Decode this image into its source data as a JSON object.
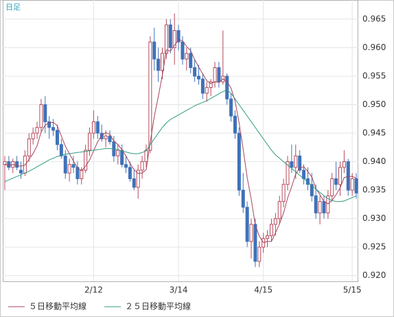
{
  "chart_data": {
    "type": "candlestick",
    "title": "日足",
    "categories": [
      null,
      null,
      null,
      null,
      null,
      null,
      null,
      null,
      null,
      null,
      null,
      null,
      null,
      null,
      null,
      null,
      null,
      null,
      null,
      null,
      null,
      null,
      "2/12",
      null,
      null,
      null,
      null,
      null,
      null,
      null,
      null,
      null,
      null,
      null,
      null,
      null,
      null,
      null,
      null,
      null,
      null,
      null,
      null,
      "3/14",
      null,
      null,
      null,
      null,
      null,
      null,
      null,
      null,
      null,
      null,
      null,
      null,
      null,
      null,
      null,
      null,
      null,
      null,
      null,
      null,
      "4/15",
      null,
      null,
      null,
      null,
      null,
      null,
      null,
      null,
      null,
      null,
      null,
      null,
      null,
      null,
      null,
      null,
      null,
      null,
      null,
      null,
      null,
      "5/15",
      null
    ],
    "open": [
      0.9395,
      0.94,
      0.939,
      0.94,
      0.9385,
      0.938,
      0.941,
      0.944,
      0.945,
      0.946,
      0.95,
      0.947,
      0.946,
      0.9455,
      0.943,
      0.941,
      0.938,
      0.9395,
      0.939,
      0.937,
      0.9385,
      0.942,
      0.945,
      0.947,
      0.945,
      0.944,
      0.9445,
      0.9435,
      0.941,
      0.942,
      0.9395,
      0.939,
      0.937,
      0.9355,
      0.9385,
      0.94,
      0.942,
      0.961,
      0.958,
      0.956,
      0.959,
      0.964,
      0.96,
      0.963,
      0.961,
      0.958,
      0.959,
      0.9565,
      0.955,
      0.9545,
      0.952,
      0.953,
      0.954,
      0.9565,
      0.954,
      0.955,
      0.951,
      0.948,
      0.945,
      0.935,
      0.932,
      0.926,
      0.929,
      0.9225,
      0.925,
      0.9265,
      0.927,
      0.929,
      0.93,
      0.933,
      0.936,
      0.94,
      0.939,
      0.941,
      0.9385,
      0.937,
      0.936,
      0.934,
      0.931,
      0.933,
      0.931,
      0.934,
      0.937,
      0.936,
      0.939,
      0.94,
      0.935,
      0.937
    ],
    "high": [
      0.941,
      0.941,
      0.9405,
      0.941,
      0.94,
      0.942,
      0.945,
      0.946,
      0.947,
      0.951,
      0.9515,
      0.948,
      0.9475,
      0.9465,
      0.944,
      0.942,
      0.9405,
      0.941,
      0.94,
      0.939,
      0.943,
      0.946,
      0.949,
      0.948,
      0.9465,
      0.9455,
      0.9455,
      0.9445,
      0.943,
      0.943,
      0.941,
      0.94,
      0.9385,
      0.9395,
      0.941,
      0.943,
      0.962,
      0.9635,
      0.96,
      0.96,
      0.965,
      0.965,
      0.966,
      0.964,
      0.962,
      0.96,
      0.96,
      0.958,
      0.957,
      0.9555,
      0.954,
      0.9545,
      0.9575,
      0.9575,
      0.963,
      0.9555,
      0.952,
      0.949,
      0.946,
      0.938,
      0.933,
      0.93,
      0.93,
      0.926,
      0.9275,
      0.928,
      0.93,
      0.931,
      0.934,
      0.937,
      0.941,
      0.943,
      0.943,
      0.942,
      0.9395,
      0.939,
      0.938,
      0.936,
      0.934,
      0.934,
      0.935,
      0.938,
      0.94,
      0.94,
      0.942,
      0.9405,
      0.938,
      0.938
    ],
    "low": [
      0.935,
      0.9385,
      0.938,
      0.9385,
      0.937,
      0.9375,
      0.94,
      0.943,
      0.944,
      0.945,
      0.945,
      0.944,
      0.9445,
      0.942,
      0.9405,
      0.937,
      0.9365,
      0.938,
      0.936,
      0.936,
      0.938,
      0.941,
      0.944,
      0.944,
      0.9435,
      0.9425,
      0.943,
      0.94,
      0.9395,
      0.939,
      0.938,
      0.9365,
      0.935,
      0.9335,
      0.937,
      0.939,
      0.9415,
      0.956,
      0.954,
      0.9545,
      0.958,
      0.959,
      0.957,
      0.9595,
      0.957,
      0.956,
      0.9555,
      0.954,
      0.9535,
      0.951,
      0.9505,
      0.9515,
      0.953,
      0.953,
      0.9535,
      0.95,
      0.947,
      0.944,
      0.934,
      0.931,
      0.925,
      0.923,
      0.9215,
      0.9215,
      0.924,
      0.925,
      0.926,
      0.927,
      0.929,
      0.932,
      0.935,
      0.938,
      0.937,
      0.938,
      0.936,
      0.935,
      0.933,
      0.93,
      0.929,
      0.93,
      0.93,
      0.933,
      0.935,
      0.934,
      0.938,
      0.934,
      0.934,
      0.9335
    ],
    "close": [
      0.94,
      0.939,
      0.94,
      0.939,
      0.938,
      0.941,
      0.944,
      0.945,
      0.946,
      0.95,
      0.947,
      0.946,
      0.9455,
      0.943,
      0.941,
      0.938,
      0.9395,
      0.939,
      0.937,
      0.9385,
      0.942,
      0.945,
      0.947,
      0.945,
      0.944,
      0.9445,
      0.9435,
      0.941,
      0.942,
      0.9395,
      0.939,
      0.937,
      0.9355,
      0.9385,
      0.94,
      0.942,
      0.961,
      0.958,
      0.956,
      0.959,
      0.964,
      0.96,
      0.963,
      0.961,
      0.958,
      0.959,
      0.9565,
      0.955,
      0.9545,
      0.952,
      0.953,
      0.954,
      0.9565,
      0.954,
      0.955,
      0.951,
      0.948,
      0.945,
      0.935,
      0.932,
      0.926,
      0.929,
      0.9225,
      0.925,
      0.9265,
      0.927,
      0.929,
      0.93,
      0.933,
      0.936,
      0.94,
      0.939,
      0.941,
      0.9385,
      0.937,
      0.936,
      0.934,
      0.931,
      0.933,
      0.931,
      0.934,
      0.937,
      0.936,
      0.939,
      0.94,
      0.935,
      0.937,
      0.9345
    ],
    "up_color": "#b5485a",
    "down_color": "#3f72b8",
    "series": [
      {
        "name": "５日移動平均線",
        "color": "#a8405a",
        "values": [
          0.9395,
          0.9393,
          0.9395,
          0.9393,
          0.9392,
          0.9394,
          0.9404,
          0.9414,
          0.9428,
          0.9452,
          0.9464,
          0.9468,
          0.9469,
          0.9463,
          0.9445,
          0.9427,
          0.9414,
          0.9401,
          0.9389,
          0.9384,
          0.9392,
          0.9403,
          0.9419,
          0.9435,
          0.9446,
          0.9451,
          0.9448,
          0.9436,
          0.943,
          0.9421,
          0.941,
          0.9397,
          0.9386,
          0.9379,
          0.938,
          0.9386,
          0.9434,
          0.9479,
          0.9514,
          0.9552,
          0.9596,
          0.9594,
          0.9604,
          0.9614,
          0.9612,
          0.9602,
          0.9595,
          0.9579,
          0.9566,
          0.9554,
          0.9542,
          0.9537,
          0.954,
          0.9539,
          0.9545,
          0.9541,
          0.9529,
          0.9506,
          0.9468,
          0.9422,
          0.9372,
          0.9334,
          0.9289,
          0.9269,
          0.9258,
          0.926,
          0.926,
          0.9275,
          0.9291,
          0.931,
          0.9336,
          0.9356,
          0.9378,
          0.9389,
          0.9391,
          0.9383,
          0.9373,
          0.9353,
          0.9342,
          0.933,
          0.9326,
          0.9332,
          0.9342,
          0.9354,
          0.9372,
          0.9374,
          0.9374,
          0.9371
        ]
      },
      {
        "name": "２５日移動平均線",
        "color": "#2e9a80",
        "values": [
          0.9365,
          0.9368,
          0.9371,
          0.9374,
          0.9377,
          0.938,
          0.9383,
          0.9387,
          0.9391,
          0.9395,
          0.9399,
          0.9403,
          0.9406,
          0.9409,
          0.9411,
          0.9413,
          0.9414,
          0.9415,
          0.9416,
          0.9417,
          0.9418,
          0.9419,
          0.942,
          0.9421,
          0.9422,
          0.9423,
          0.9423,
          0.9422,
          0.9421,
          0.9419,
          0.9417,
          0.9415,
          0.9414,
          0.9414,
          0.9416,
          0.9419,
          0.943,
          0.944,
          0.945,
          0.946,
          0.9468,
          0.9474,
          0.9478,
          0.9482,
          0.9486,
          0.949,
          0.9494,
          0.9498,
          0.9501,
          0.9504,
          0.9507,
          0.9511,
          0.9515,
          0.9519,
          0.9523,
          0.9526,
          0.952,
          0.951,
          0.95,
          0.949,
          0.948,
          0.947,
          0.946,
          0.945,
          0.944,
          0.943,
          0.942,
          0.9412,
          0.9406,
          0.94,
          0.9394,
          0.9388,
          0.9382,
          0.9376,
          0.937,
          0.9364,
          0.9358,
          0.9352,
          0.9346,
          0.934,
          0.9335,
          0.9332,
          0.933,
          0.933,
          0.9331,
          0.9334,
          0.9337,
          0.934
        ]
      }
    ],
    "ylim": [
      0.919,
      0.9674
    ],
    "yticks": [
      {
        "value": 0.92,
        "label": "0.920"
      },
      0.925,
      {
        "value": 0.93,
        "label": "0.930"
      },
      0.935,
      {
        "value": 0.94,
        "label": "0.940"
      },
      0.945,
      {
        "value": 0.95,
        "label": "0.950"
      },
      0.955,
      {
        "value": 0.96,
        "label": "0.960"
      },
      0.965
    ],
    "grid": true
  }
}
